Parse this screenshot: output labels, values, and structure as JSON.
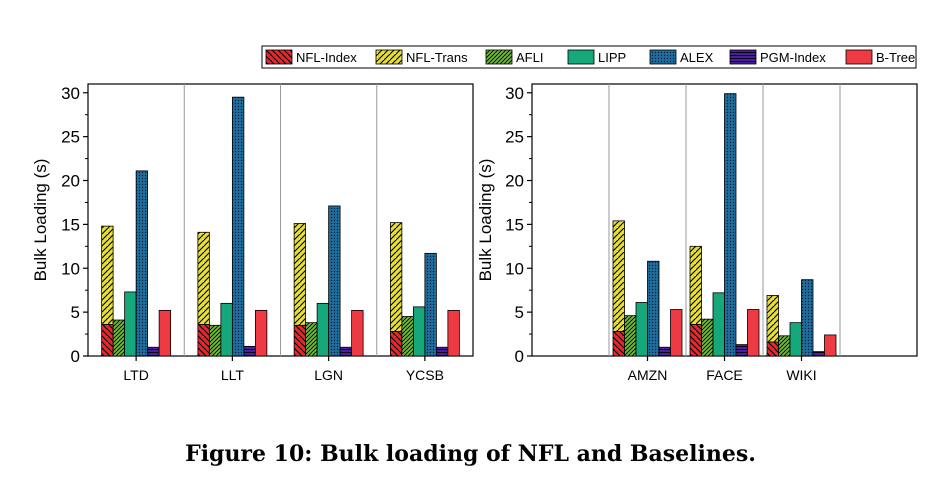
{
  "caption": "Figure 10: Bulk loading of NFL and Baselines.",
  "legend": [
    {
      "name": "NFL-Index",
      "color": "#e8262b",
      "pattern": "diag-back"
    },
    {
      "name": "NFL-Trans",
      "color": "#e6df3a",
      "pattern": "diag-fwd"
    },
    {
      "name": "AFLI",
      "color": "#72b83a",
      "pattern": "diag-dense"
    },
    {
      "name": "LIPP",
      "color": "#16a87a",
      "pattern": "solid"
    },
    {
      "name": "ALEX",
      "color": "#1f6f9e",
      "pattern": "dots"
    },
    {
      "name": "PGM-Index",
      "color": "#4b1ea0",
      "pattern": "hlines"
    },
    {
      "name": "B-Tree",
      "color": "#ee3b43",
      "pattern": "solid"
    }
  ],
  "chart_data": [
    {
      "type": "bar",
      "ylabel": "Bulk Loading (s)",
      "ylim": [
        0,
        31
      ],
      "yticks": [
        0,
        5,
        10,
        15,
        20,
        25,
        30
      ],
      "grid": true,
      "stacked_groups": [
        [
          "NFL-Index",
          "NFL-Trans"
        ]
      ],
      "categories": [
        "LTD",
        "LLT",
        "LGN",
        "YCSB"
      ],
      "series": [
        {
          "name": "NFL-Index",
          "values": [
            3.6,
            3.6,
            3.5,
            2.8
          ]
        },
        {
          "name": "NFL-Trans",
          "values": [
            11.2,
            10.5,
            11.6,
            12.4
          ]
        },
        {
          "name": "AFLI",
          "values": [
            4.1,
            3.5,
            3.8,
            4.5
          ]
        },
        {
          "name": "LIPP",
          "values": [
            7.3,
            6.0,
            6.0,
            5.6
          ]
        },
        {
          "name": "ALEX",
          "values": [
            21.1,
            29.5,
            17.1,
            11.7
          ]
        },
        {
          "name": "PGM-Index",
          "values": [
            1.0,
            1.1,
            1.0,
            1.0
          ]
        },
        {
          "name": "B-Tree",
          "values": [
            5.2,
            5.2,
            5.2,
            5.2
          ]
        }
      ]
    },
    {
      "type": "bar",
      "ylabel": "Bulk Loading (s)",
      "ylim": [
        0,
        31
      ],
      "yticks": [
        0,
        5,
        10,
        15,
        20,
        25,
        30
      ],
      "grid": true,
      "stacked_groups": [
        [
          "NFL-Index",
          "NFL-Trans"
        ]
      ],
      "categories": [
        "",
        "AMZN",
        "FACE",
        "WIKI",
        ""
      ],
      "series": [
        {
          "name": "NFL-Index",
          "values": [
            null,
            2.8,
            3.6,
            1.6,
            null
          ]
        },
        {
          "name": "NFL-Trans",
          "values": [
            null,
            12.6,
            8.9,
            5.3,
            null
          ]
        },
        {
          "name": "AFLI",
          "values": [
            null,
            4.6,
            4.2,
            2.3,
            null
          ]
        },
        {
          "name": "LIPP",
          "values": [
            null,
            6.1,
            7.2,
            3.8,
            null
          ]
        },
        {
          "name": "ALEX",
          "values": [
            null,
            10.8,
            29.9,
            8.7,
            null
          ]
        },
        {
          "name": "PGM-Index",
          "values": [
            null,
            1.0,
            1.3,
            0.5,
            null
          ]
        },
        {
          "name": "B-Tree",
          "values": [
            null,
            5.3,
            5.3,
            2.4,
            null
          ]
        }
      ]
    }
  ]
}
